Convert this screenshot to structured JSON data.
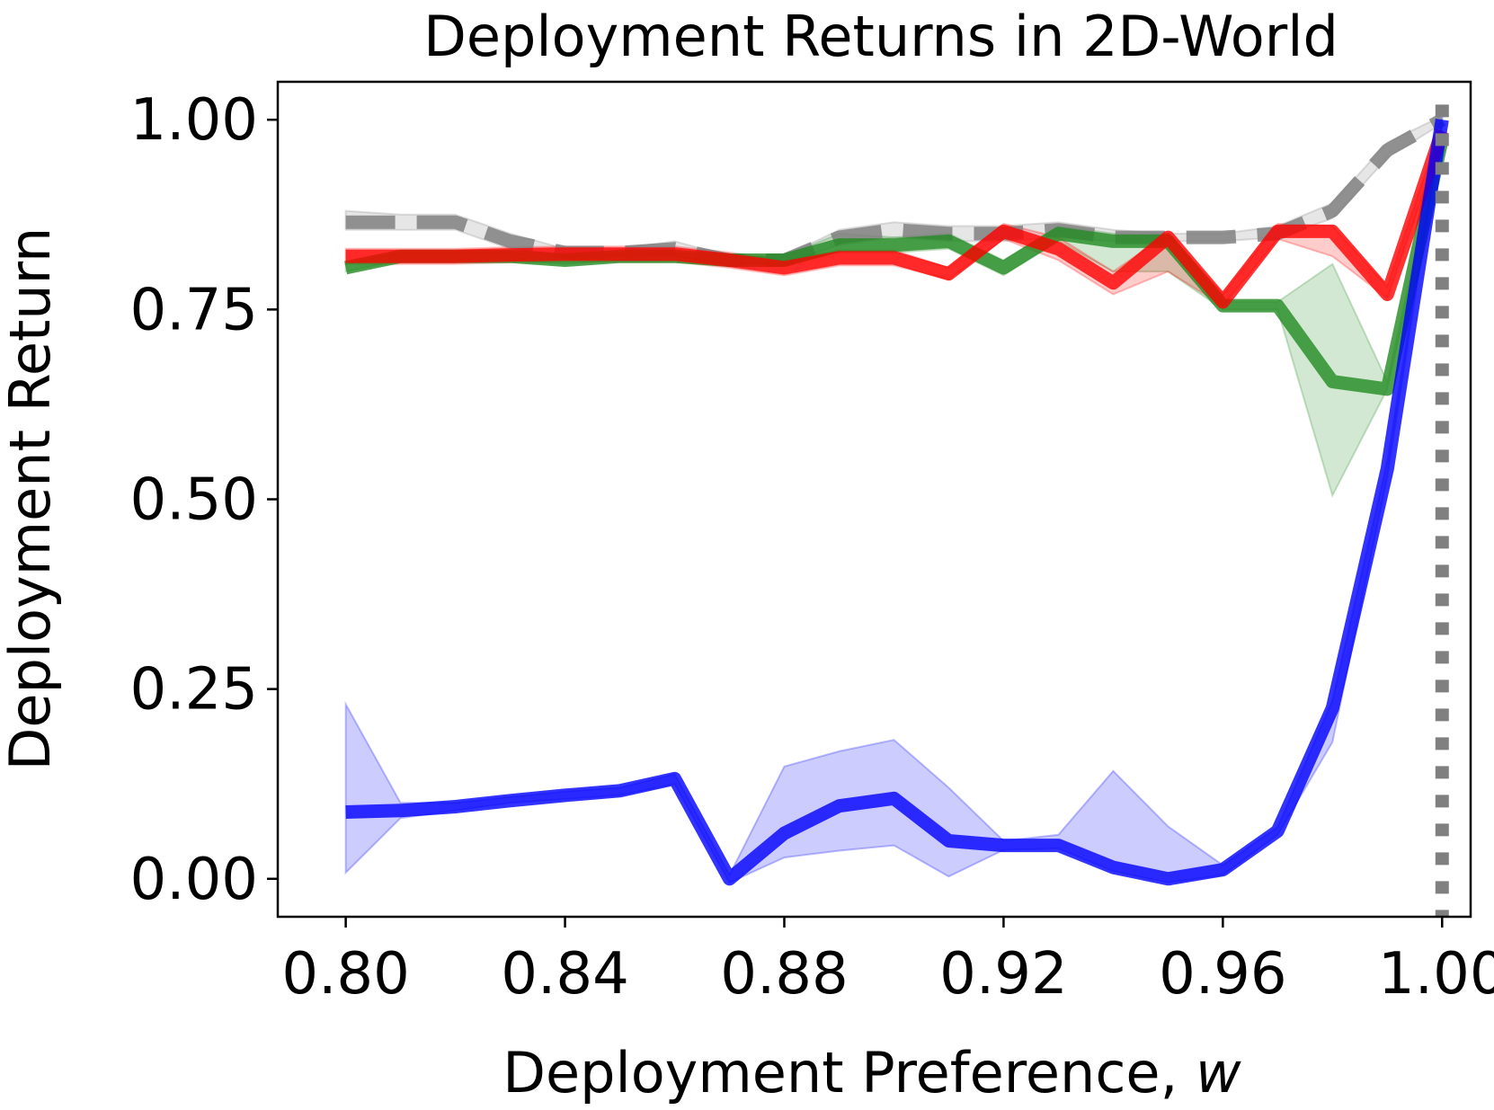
{
  "chart_data": {
    "type": "line",
    "title": "Deployment Returns in 2D-World",
    "xlabel": "Deployment Preference, ",
    "xlabel_var": "w",
    "ylabel": "Deployment Return",
    "xlim": [
      0.7876,
      1.0052
    ],
    "ylim": [
      -0.05,
      1.05
    ],
    "xticks": [
      0.8,
      0.84,
      0.88,
      0.92,
      0.96,
      1.0
    ],
    "xtick_labels": [
      "0.80",
      "0.84",
      "0.88",
      "0.92",
      "0.96",
      "1.00"
    ],
    "yticks": [
      0.0,
      0.25,
      0.5,
      0.75,
      1.0
    ],
    "ytick_labels": [
      "0.00",
      "0.25",
      "0.50",
      "0.75",
      "1.00"
    ],
    "grid": false,
    "x": [
      0.8,
      0.81,
      0.82,
      0.83,
      0.84,
      0.85,
      0.86,
      0.87,
      0.88,
      0.89,
      0.9,
      0.91,
      0.92,
      0.93,
      0.94,
      0.95,
      0.96,
      0.97,
      0.98,
      0.99,
      1.0
    ],
    "series": [
      {
        "color": "#808080",
        "style": "dashed",
        "values": [
          0.865,
          0.865,
          0.865,
          0.84,
          0.825,
          0.825,
          0.83,
          0.815,
          0.815,
          0.845,
          0.855,
          0.85,
          0.85,
          0.855,
          0.845,
          0.845,
          0.845,
          0.85,
          0.88,
          0.96,
          1.0
        ],
        "lower": [
          0.855,
          0.855,
          0.855,
          0.83,
          0.82,
          0.82,
          0.82,
          0.81,
          0.81,
          0.835,
          0.845,
          0.84,
          0.84,
          0.845,
          0.84,
          0.84,
          0.84,
          0.845,
          0.87,
          0.95,
          0.995
        ],
        "upper": [
          0.88,
          0.875,
          0.875,
          0.85,
          0.83,
          0.83,
          0.84,
          0.82,
          0.82,
          0.855,
          0.865,
          0.86,
          0.86,
          0.865,
          0.855,
          0.85,
          0.85,
          0.86,
          0.89,
          0.97,
          1.005
        ]
      },
      {
        "color": "#228B22",
        "style": "solid",
        "values": [
          0.805,
          0.82,
          0.82,
          0.82,
          0.815,
          0.82,
          0.82,
          0.815,
          0.815,
          0.835,
          0.835,
          0.84,
          0.805,
          0.85,
          0.84,
          0.84,
          0.755,
          0.755,
          0.655,
          0.645,
          0.975
        ],
        "lower": [
          0.8,
          0.815,
          0.815,
          0.815,
          0.81,
          0.815,
          0.815,
          0.81,
          0.81,
          0.825,
          0.825,
          0.83,
          0.795,
          0.84,
          0.8,
          0.8,
          0.75,
          0.75,
          0.505,
          0.645,
          0.965
        ],
        "upper": [
          0.81,
          0.825,
          0.825,
          0.825,
          0.82,
          0.825,
          0.825,
          0.82,
          0.82,
          0.85,
          0.845,
          0.85,
          0.815,
          0.86,
          0.85,
          0.85,
          0.76,
          0.76,
          0.81,
          0.655,
          0.985
        ]
      },
      {
        "color": "#FF0000",
        "style": "solid",
        "values": [
          0.82,
          0.82,
          0.82,
          0.822,
          0.823,
          0.823,
          0.823,
          0.815,
          0.805,
          0.818,
          0.818,
          0.797,
          0.853,
          0.83,
          0.785,
          0.845,
          0.76,
          0.853,
          0.853,
          0.77,
          0.985
        ],
        "lower": [
          0.81,
          0.81,
          0.81,
          0.812,
          0.813,
          0.813,
          0.813,
          0.805,
          0.795,
          0.808,
          0.808,
          0.79,
          0.843,
          0.815,
          0.77,
          0.8,
          0.755,
          0.843,
          0.82,
          0.765,
          0.975
        ],
        "upper": [
          0.83,
          0.83,
          0.83,
          0.832,
          0.833,
          0.833,
          0.833,
          0.825,
          0.815,
          0.828,
          0.828,
          0.805,
          0.863,
          0.845,
          0.8,
          0.85,
          0.77,
          0.863,
          0.86,
          0.78,
          0.995
        ]
      },
      {
        "color": "#0000FF",
        "style": "solid",
        "values": [
          0.088,
          0.09,
          0.095,
          0.103,
          0.11,
          0.116,
          0.132,
          0.0,
          0.06,
          0.096,
          0.106,
          0.05,
          0.044,
          0.044,
          0.015,
          0.0,
          0.012,
          0.063,
          0.225,
          0.54,
          1.0
        ],
        "lower": [
          0.008,
          0.08,
          0.09,
          0.1,
          0.105,
          0.11,
          0.125,
          -0.005,
          0.028,
          0.037,
          0.044,
          0.003,
          0.038,
          0.04,
          0.01,
          -0.005,
          0.005,
          0.058,
          0.18,
          0.53,
          0.995
        ],
        "upper": [
          0.23,
          0.1,
          0.1,
          0.108,
          0.115,
          0.12,
          0.138,
          0.005,
          0.148,
          0.168,
          0.183,
          0.12,
          0.05,
          0.058,
          0.142,
          0.069,
          0.018,
          0.068,
          0.235,
          0.55,
          1.005
        ]
      }
    ],
    "vline": {
      "x": 1.0,
      "color": "#808080",
      "style": "dotted"
    }
  }
}
